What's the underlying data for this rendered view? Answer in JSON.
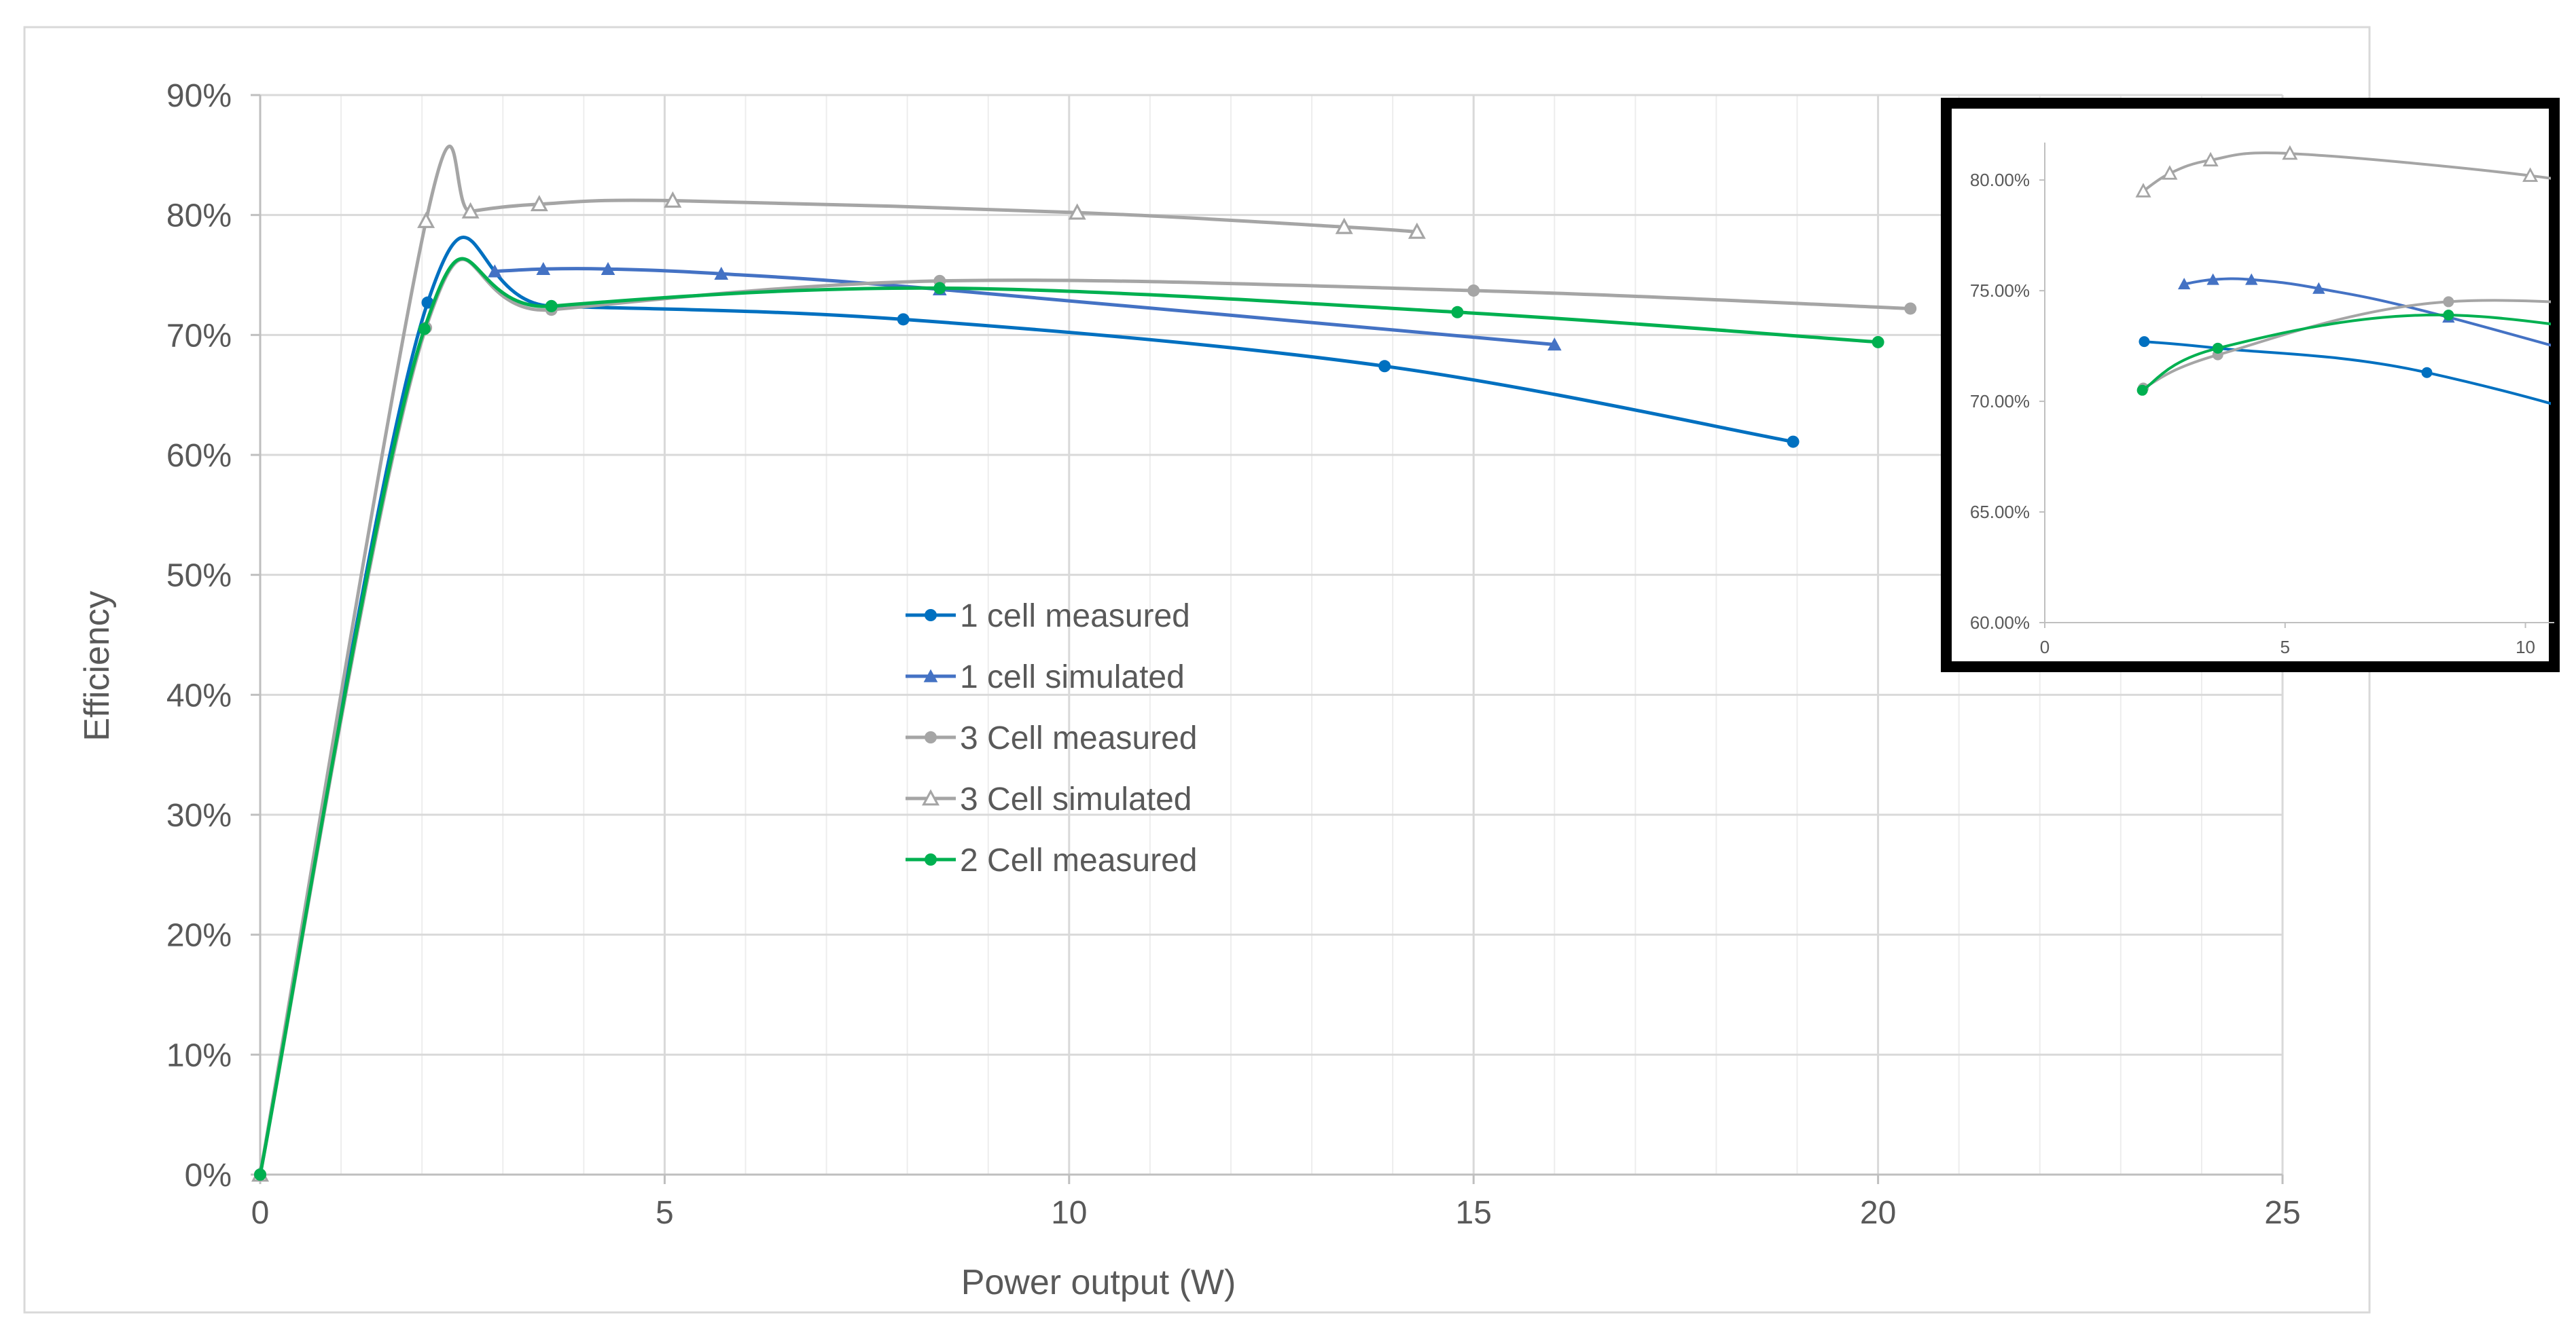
{
  "chart_data": [
    {
      "type": "line",
      "role": "main",
      "xlabel": "Power output (W)",
      "ylabel": "Efficiency",
      "xlim": [
        0,
        25
      ],
      "ylim": [
        0,
        90
      ],
      "x_ticks": [
        0,
        5,
        10,
        15,
        20,
        25
      ],
      "x_minor_step": 1,
      "y_ticks": [
        0,
        10,
        20,
        30,
        40,
        50,
        60,
        70,
        80,
        90
      ],
      "y_tick_labels": [
        "0%",
        "10%",
        "20%",
        "30%",
        "40%",
        "50%",
        "60%",
        "70%",
        "80%",
        "90%"
      ],
      "grid": true,
      "legend_position": "center",
      "series": [
        {
          "name": "1 cell measured",
          "color": "#0070C0",
          "marker": "circle",
          "x": [
            0,
            2.07,
            3.6,
            7.95,
            13.9,
            18.95
          ],
          "y": [
            0,
            72.7,
            72.4,
            71.3,
            67.4,
            61.1
          ]
        },
        {
          "name": "1 cell simulated",
          "color": "#4472C4",
          "marker": "triangle",
          "x": [
            2.9,
            3.5,
            4.3,
            5.7,
            8.4,
            16.0
          ],
          "y": [
            75.3,
            75.5,
            75.5,
            75.1,
            73.8,
            69.2
          ]
        },
        {
          "name": "3 Cell measured",
          "color": "#A5A5A5",
          "marker": "circle",
          "x": [
            0,
            2.05,
            3.6,
            8.4,
            15.0,
            20.4
          ],
          "y": [
            0,
            70.6,
            72.1,
            74.5,
            73.7,
            72.2
          ]
        },
        {
          "name": "3 Cell simulated",
          "color": "#A5A5A5",
          "marker": "triangle-open",
          "x": [
            0,
            2.05,
            2.6,
            3.45,
            5.1,
            10.1,
            13.4,
            14.3
          ],
          "y": [
            0,
            79.5,
            80.3,
            80.9,
            81.2,
            80.2,
            79.0,
            78.6
          ]
        },
        {
          "name": "2 Cell measured",
          "color": "#00B050",
          "marker": "circle",
          "x": [
            0,
            2.03,
            3.6,
            8.4,
            14.8,
            20.0
          ],
          "y": [
            0,
            70.5,
            72.4,
            73.9,
            71.9,
            69.4
          ]
        }
      ]
    },
    {
      "type": "line",
      "role": "inset",
      "xlim": [
        0,
        10.6
      ],
      "ylim": [
        60,
        82
      ],
      "x_ticks": [
        0,
        5,
        10
      ],
      "y_ticks": [
        60,
        65,
        70,
        75,
        80
      ],
      "y_tick_labels": [
        "60.00%",
        "65.00%",
        "70.00%",
        "75.00%",
        "80.00%"
      ],
      "grid": false
    }
  ]
}
